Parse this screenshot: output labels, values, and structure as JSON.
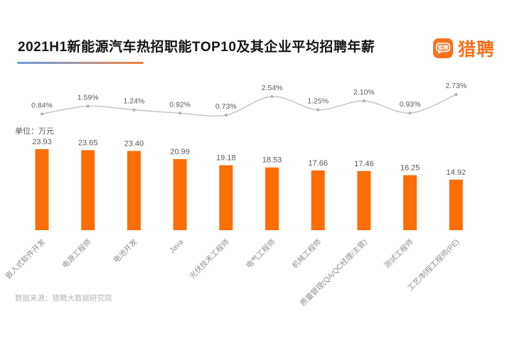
{
  "header": {
    "title": "2021H1新能源汽车热招职能TOP10及其企业平均招聘年薪",
    "logo": {
      "text": "猎聘",
      "icon_text": "猎聘",
      "brand_color": "#F8701D"
    }
  },
  "chart": {
    "unit_label": "单位：万元",
    "source_label": "数据来源：猎聘大数据研究院",
    "bar_color": "#FB6D05",
    "line_color": "#C6C6C6",
    "dot_color": "#B3B3B3",
    "value_label_color": "#595959",
    "percent_label_color": "#595959",
    "axis_label_color": "#8F8F8F"
  },
  "chart_data": {
    "type": "bar",
    "overlay": "line",
    "title": "2021H1新能源汽车热招职能TOP10及其企业平均招聘年薪",
    "unit": "万元",
    "categories": [
      "嵌入式软件开发",
      "电源工程师",
      "电池开发",
      "Java",
      "光伏技术工程师",
      "电气工程师",
      "机械工程师",
      "质量管理(QA/QC经理/主管)",
      "测试工程师",
      "工艺/制程工程师(PE)"
    ],
    "series": [
      {
        "type": "bar",
        "label_unit": "万元",
        "values": [
          23.93,
          23.65,
          23.4,
          20.99,
          19.18,
          18.53,
          17.66,
          17.46,
          16.25,
          14.92
        ]
      },
      {
        "type": "line",
        "label_unit": "%",
        "values": [
          0.84,
          1.59,
          1.24,
          0.92,
          0.73,
          2.54,
          1.25,
          2.1,
          0.93,
          2.73
        ]
      }
    ],
    "ylim_bar": [
      0,
      26
    ],
    "grid": false,
    "legend": false
  }
}
